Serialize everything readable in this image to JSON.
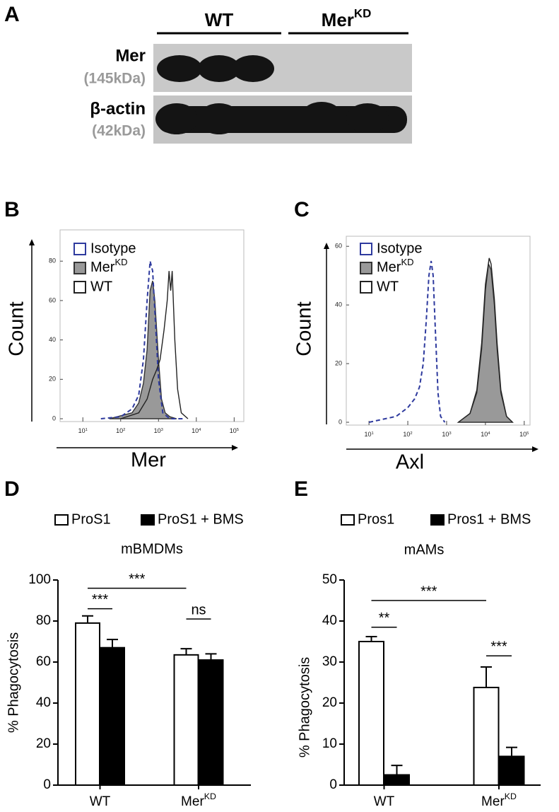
{
  "blot": {
    "panel_label": "A",
    "groups": [
      {
        "text": "WT"
      },
      {
        "text": "Mer",
        "sup": "KD"
      }
    ],
    "rows": [
      {
        "protein": "Mer",
        "size": "(145kDa)"
      },
      {
        "protein": "β-actin",
        "size": "(42kDa)"
      }
    ]
  },
  "chart_data": [
    {
      "type": "area",
      "panel_label": "B",
      "x_label": "Mer",
      "y_label": "Count",
      "xscale": "log",
      "xlim": [
        2.5,
        180000
      ],
      "xticks": [
        {
          "value": 10,
          "label": "10",
          "sup": "1"
        },
        {
          "value": 100,
          "label": "10",
          "sup": "2"
        },
        {
          "value": 1000,
          "label": "10",
          "sup": "3"
        },
        {
          "value": 10000,
          "label": "10",
          "sup": "4"
        },
        {
          "value": 100000,
          "label": "10",
          "sup": "5"
        }
      ],
      "ylim": [
        0,
        93
      ],
      "yticks": [
        0,
        20,
        40,
        60,
        80
      ],
      "legend": "top-left",
      "series": [
        {
          "name": "Isotype",
          "color": "#2e3a9e",
          "fill": "none",
          "dash": true,
          "x": [
            30,
            100,
            200,
            300,
            400,
            500,
            600,
            700,
            800,
            1000,
            1300,
            2000,
            5000
          ],
          "values": [
            0,
            1,
            5,
            12,
            30,
            60,
            80,
            75,
            55,
            20,
            3,
            0,
            0
          ]
        },
        {
          "name": {
            "text": "Mer",
            "sup": "KD"
          },
          "color": "#333333",
          "fill": "#999999",
          "dash": false,
          "x": [
            50,
            200,
            300,
            400,
            500,
            600,
            700,
            800,
            1000,
            1200,
            1500,
            2000,
            3000
          ],
          "values": [
            0,
            3,
            8,
            18,
            35,
            65,
            70,
            60,
            30,
            10,
            3,
            1,
            0
          ]
        },
        {
          "name": "WT",
          "color": "#222222",
          "fill": "none",
          "dash": false,
          "x": [
            100,
            300,
            500,
            700,
            900,
            1100,
            1400,
            1700,
            1900,
            2100,
            2300,
            2700,
            3200,
            4000,
            6000
          ],
          "values": [
            0,
            3,
            10,
            20,
            25,
            30,
            45,
            60,
            75,
            65,
            75,
            40,
            15,
            3,
            0
          ]
        }
      ]
    },
    {
      "type": "area",
      "panel_label": "C",
      "x_label": "Axl",
      "y_label": "Count",
      "xscale": "log",
      "xlim": [
        2.6,
        141000
      ],
      "xticks": [
        {
          "value": 10,
          "label": "10",
          "sup": "1"
        },
        {
          "value": 100,
          "label": "10",
          "sup": "2"
        },
        {
          "value": 1000,
          "label": "10",
          "sup": "3"
        },
        {
          "value": 10000,
          "label": "10",
          "sup": "4"
        },
        {
          "value": 100000,
          "label": "10",
          "sup": "5"
        }
      ],
      "ylim": [
        0,
        61.5
      ],
      "yticks": [
        0,
        20,
        40,
        60
      ],
      "legend": "top-left",
      "series": [
        {
          "name": "Isotype",
          "color": "#2e3a9e",
          "fill": "none",
          "dash": true,
          "x": [
            10,
            50,
            100,
            150,
            200,
            250,
            300,
            350,
            400,
            450,
            500,
            600,
            700,
            900
          ],
          "values": [
            0,
            2,
            5,
            8,
            12,
            20,
            35,
            50,
            55,
            50,
            35,
            10,
            2,
            0
          ]
        },
        {
          "name": {
            "text": "Mer",
            "sup": "KD"
          },
          "color": "#333333",
          "fill": "#999999",
          "dash": false,
          "x": [
            2000,
            4000,
            6000,
            8000,
            10000,
            12000,
            14000,
            17000,
            20000,
            25000,
            35000,
            50000
          ],
          "values": [
            0,
            3,
            10,
            25,
            45,
            54,
            52,
            40,
            25,
            10,
            2,
            0
          ]
        },
        {
          "name": "WT",
          "color": "#222222",
          "fill": "none",
          "dash": false,
          "x": [
            2000,
            4000,
            6000,
            8000,
            10000,
            12500,
            14000,
            17000,
            20000,
            25000,
            35000,
            50000
          ],
          "values": [
            0,
            3,
            11,
            27,
            47,
            56,
            54,
            42,
            27,
            11,
            2,
            0
          ]
        }
      ]
    },
    {
      "type": "bar",
      "panel_label": "D",
      "title": "mBMDMs",
      "y_label": "% Phagocytosis",
      "categories": [
        "WT",
        {
          "text": "Mer",
          "sup": "KD"
        }
      ],
      "ylim": [
        0,
        100
      ],
      "yticks": [
        0,
        20,
        40,
        60,
        80,
        100
      ],
      "legend": "top",
      "series": [
        {
          "name": "ProS1",
          "color": "#ffffff",
          "values": [
            79,
            63.5
          ],
          "errors": [
            3.5,
            3
          ]
        },
        {
          "name": "ProS1 + BMS",
          "color": "#000000",
          "values": [
            67,
            61
          ],
          "errors": [
            4,
            3
          ]
        }
      ],
      "annotations": [
        {
          "text": "***",
          "y": 96
        },
        {
          "text": "***",
          "y": 86
        },
        {
          "text": "ns",
          "y": 81
        }
      ]
    },
    {
      "type": "bar",
      "panel_label": "E",
      "title": "mAMs",
      "y_label": "% Phagocytosis",
      "categories": [
        "WT",
        {
          "text": "Mer",
          "sup": "KD"
        }
      ],
      "ylim": [
        0,
        50
      ],
      "yticks": [
        0,
        10,
        20,
        30,
        40,
        50
      ],
      "legend": "top",
      "series": [
        {
          "name": "Pros1",
          "color": "#ffffff",
          "values": [
            35,
            23.8
          ],
          "errors": [
            1.2,
            5
          ]
        },
        {
          "name": "Pros1 + BMS",
          "color": "#000000",
          "values": [
            2.5,
            7
          ],
          "errors": [
            2.3,
            2.2
          ]
        }
      ],
      "annotations": [
        {
          "text": "***",
          "y": 45
        },
        {
          "text": "**",
          "y": 38.5
        },
        {
          "text": "***",
          "y": 31.5
        }
      ]
    }
  ]
}
